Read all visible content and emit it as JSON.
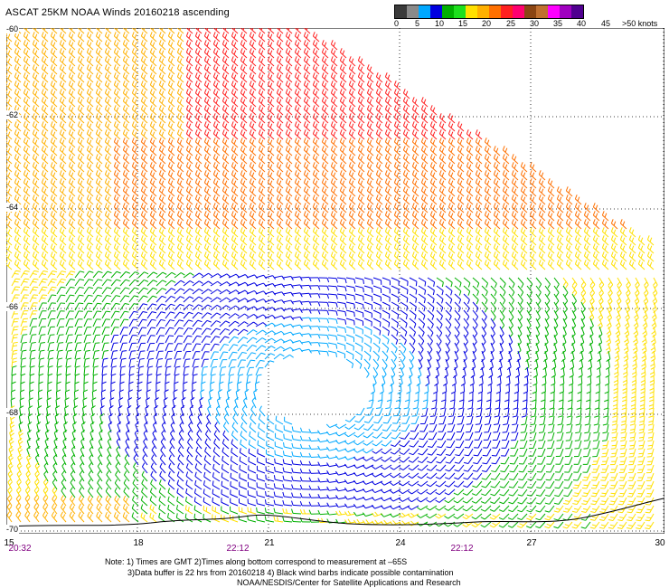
{
  "title": "ASCAT 25KM NOAA Winds 20160218 ascending",
  "colorbar": {
    "colors": [
      "#3a3a3a",
      "#8a8a8a",
      "#00a8ff",
      "#0000e0",
      "#00b000",
      "#1ee01e",
      "#ffe000",
      "#ffb000",
      "#ff7000",
      "#ff2020",
      "#ff0070",
      "#8b4513",
      "#c07030",
      "#ff00ff",
      "#a000c0",
      "#500090"
    ],
    "labels": [
      "0",
      "5",
      "10",
      "15",
      "20",
      "25",
      "30",
      "35",
      "40",
      "45",
      ">50 knots"
    ]
  },
  "lat_labels": [
    "-60",
    "-62",
    "-64",
    "-66",
    "-68",
    "-70"
  ],
  "lon_labels": [
    "15",
    "18",
    "21",
    "24",
    "27",
    "30"
  ],
  "time_labels": [
    "20:32",
    "22:12",
    "22:12"
  ],
  "notes": [
    "Note: 1) Times are GMT 2)Times along bottom correspond to measurement at –65S",
    "3)Data buffer is 22 hrs from 20160218 4) Black wind barbs indicate possible contamination",
    "NOAA/NESDIS/Center for Satellite Applications and Research"
  ]
}
